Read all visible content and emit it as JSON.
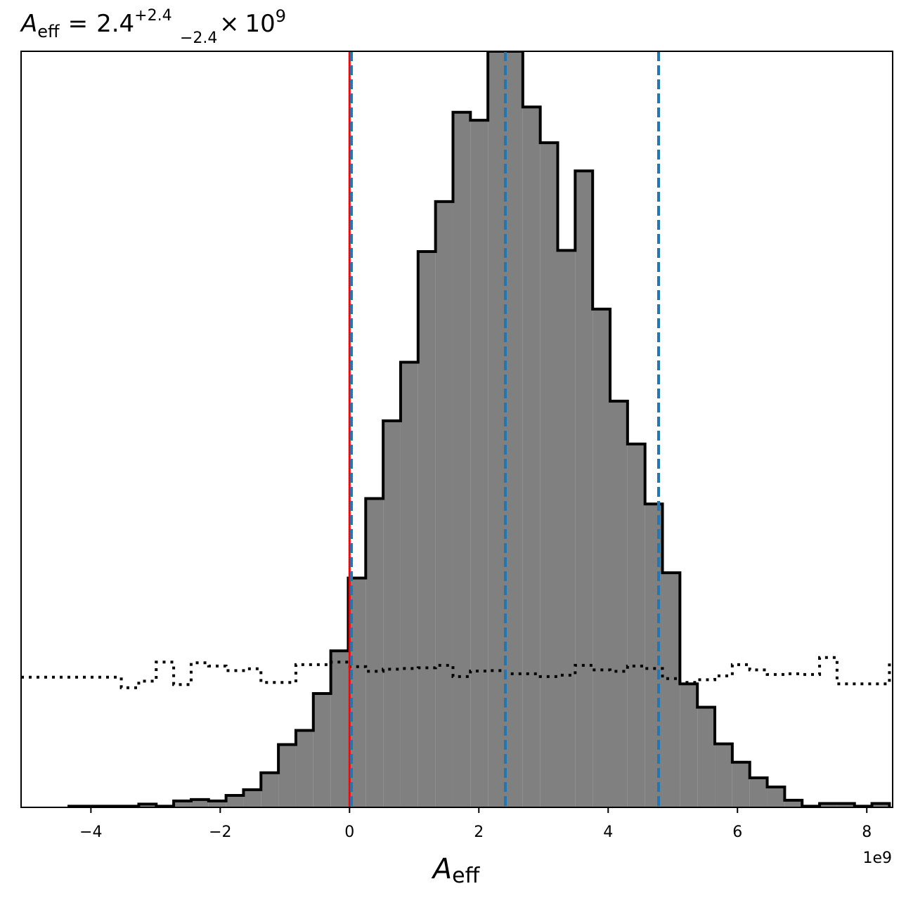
{
  "chart_data": {
    "type": "histogram",
    "title": {
      "symbol": "A",
      "symbol_subscript": "eff",
      "equals": "=",
      "median": "2.4",
      "err_plus": "+2.4",
      "err_minus": "−2.4",
      "times": "×",
      "exp_base": "10",
      "exp_power": "9"
    },
    "xlabel": {
      "symbol": "A",
      "subscript": "eff"
    },
    "ylabel": "",
    "x_scale_label": "1e9",
    "x_unit_multiplier": 1000000000.0,
    "xlim": [
      -5.08,
      8.4
    ],
    "ylim": [
      0,
      0.33
    ],
    "x_ticks": [
      {
        "value": -4,
        "label": "−4"
      },
      {
        "value": -2,
        "label": "−2"
      },
      {
        "value": 0,
        "label": "0"
      },
      {
        "value": 2,
        "label": "2"
      },
      {
        "value": 4,
        "label": "4"
      },
      {
        "value": 6,
        "label": "6"
      },
      {
        "value": 8,
        "label": "8"
      }
    ],
    "y_ticks_visible": false,
    "grid": false,
    "bin_width": 0.27,
    "posterior": {
      "color": "#808080",
      "edge_color": "#000000",
      "bins": [
        {
          "x0": -4.34,
          "x1": -4.07,
          "y": 0.0005
        },
        {
          "x0": -4.07,
          "x1": -3.8,
          "y": 0.0005
        },
        {
          "x0": -3.8,
          "x1": -3.53,
          "y": 0.0005
        },
        {
          "x0": -3.53,
          "x1": -3.26,
          "y": 0.0005
        },
        {
          "x0": -3.26,
          "x1": -2.99,
          "y": 0.0014
        },
        {
          "x0": -2.99,
          "x1": -2.72,
          "y": 0.0005
        },
        {
          "x0": -2.72,
          "x1": -2.45,
          "y": 0.0028
        },
        {
          "x0": -2.45,
          "x1": -2.18,
          "y": 0.0034
        },
        {
          "x0": -2.18,
          "x1": -1.91,
          "y": 0.0028
        },
        {
          "x0": -1.91,
          "x1": -1.64,
          "y": 0.0052
        },
        {
          "x0": -1.64,
          "x1": -1.37,
          "y": 0.0077
        },
        {
          "x0": -1.37,
          "x1": -1.1,
          "y": 0.0151
        },
        {
          "x0": -1.1,
          "x1": -0.83,
          "y": 0.0274
        },
        {
          "x0": -0.83,
          "x1": -0.56,
          "y": 0.0336
        },
        {
          "x0": -0.56,
          "x1": -0.29,
          "y": 0.0497
        },
        {
          "x0": -0.29,
          "x1": -0.02,
          "y": 0.0683
        },
        {
          "x0": -0.02,
          "x1": 0.25,
          "y": 0.1001
        },
        {
          "x0": 0.25,
          "x1": 0.52,
          "y": 0.1348
        },
        {
          "x0": 0.52,
          "x1": 0.79,
          "y": 0.1687
        },
        {
          "x0": 0.79,
          "x1": 1.06,
          "y": 0.1943
        },
        {
          "x0": 1.06,
          "x1": 1.33,
          "y": 0.2426
        },
        {
          "x0": 1.33,
          "x1": 1.6,
          "y": 0.2644
        },
        {
          "x0": 1.6,
          "x1": 1.87,
          "y": 0.3034
        },
        {
          "x0": 1.87,
          "x1": 2.14,
          "y": 0.2999
        },
        {
          "x0": 2.14,
          "x1": 2.41,
          "y": 0.33
        },
        {
          "x0": 2.41,
          "x1": 2.68,
          "y": 0.33
        },
        {
          "x0": 2.68,
          "x1": 2.95,
          "y": 0.3057
        },
        {
          "x0": 2.95,
          "x1": 3.22,
          "y": 0.2901
        },
        {
          "x0": 3.22,
          "x1": 3.49,
          "y": 0.2431
        },
        {
          "x0": 3.49,
          "x1": 3.76,
          "y": 0.2778
        },
        {
          "x0": 3.76,
          "x1": 4.03,
          "y": 0.2175
        },
        {
          "x0": 4.03,
          "x1": 4.3,
          "y": 0.1773
        },
        {
          "x0": 4.3,
          "x1": 4.57,
          "y": 0.1586
        },
        {
          "x0": 4.57,
          "x1": 4.84,
          "y": 0.1324
        },
        {
          "x0": 4.84,
          "x1": 5.11,
          "y": 0.1024
        },
        {
          "x0": 5.11,
          "x1": 5.38,
          "y": 0.0539
        },
        {
          "x0": 5.38,
          "x1": 5.65,
          "y": 0.0437
        },
        {
          "x0": 5.65,
          "x1": 5.92,
          "y": 0.0277
        },
        {
          "x0": 5.92,
          "x1": 6.19,
          "y": 0.0197
        },
        {
          "x0": 6.19,
          "x1": 6.46,
          "y": 0.0129
        },
        {
          "x0": 6.46,
          "x1": 6.73,
          "y": 0.0089
        },
        {
          "x0": 6.73,
          "x1": 7.0,
          "y": 0.0031
        },
        {
          "x0": 7.0,
          "x1": 7.27,
          "y": 0.0005
        },
        {
          "x0": 7.27,
          "x1": 7.54,
          "y": 0.0017
        },
        {
          "x0": 7.54,
          "x1": 7.81,
          "y": 0.0017
        },
        {
          "x0": 7.81,
          "x1": 8.08,
          "y": 0.0005
        },
        {
          "x0": 8.08,
          "x1": 8.35,
          "y": 0.0017
        }
      ]
    },
    "prior": {
      "line_style": "dotted",
      "color": "#000000",
      "steps": [
        {
          "x0": -5.08,
          "x1": -3.53,
          "y": 0.0568
        },
        {
          "x0": -3.53,
          "x1": -3.26,
          "y": 0.0522
        },
        {
          "x0": -3.26,
          "x1": -2.99,
          "y": 0.0551
        },
        {
          "x0": -2.99,
          "x1": -2.72,
          "y": 0.0634
        },
        {
          "x0": -2.72,
          "x1": -2.45,
          "y": 0.0536
        },
        {
          "x0": -2.45,
          "x1": -2.18,
          "y": 0.0631
        },
        {
          "x0": -2.18,
          "x1": -1.91,
          "y": 0.0617
        },
        {
          "x0": -1.91,
          "x1": -1.64,
          "y": 0.0597
        },
        {
          "x0": -1.64,
          "x1": -1.37,
          "y": 0.0605
        },
        {
          "x0": -1.37,
          "x1": -1.1,
          "y": 0.0545
        },
        {
          "x0": -1.1,
          "x1": -0.83,
          "y": 0.0545
        },
        {
          "x0": -0.83,
          "x1": -0.56,
          "y": 0.0623
        },
        {
          "x0": -0.56,
          "x1": -0.29,
          "y": 0.0623
        },
        {
          "x0": -0.29,
          "x1": -0.02,
          "y": 0.0634
        },
        {
          "x0": -0.02,
          "x1": 0.25,
          "y": 0.0614
        },
        {
          "x0": 0.25,
          "x1": 0.52,
          "y": 0.0594
        },
        {
          "x0": 0.52,
          "x1": 0.79,
          "y": 0.0603
        },
        {
          "x0": 0.79,
          "x1": 1.06,
          "y": 0.0606
        },
        {
          "x0": 1.06,
          "x1": 1.33,
          "y": 0.0609
        },
        {
          "x0": 1.33,
          "x1": 1.6,
          "y": 0.062
        },
        {
          "x0": 1.6,
          "x1": 1.87,
          "y": 0.0571
        },
        {
          "x0": 1.87,
          "x1": 2.14,
          "y": 0.0595
        },
        {
          "x0": 2.14,
          "x1": 2.41,
          "y": 0.0597
        },
        {
          "x0": 2.41,
          "x1": 2.68,
          "y": 0.0583
        },
        {
          "x0": 2.68,
          "x1": 2.95,
          "y": 0.0583
        },
        {
          "x0": 2.95,
          "x1": 3.22,
          "y": 0.0571
        },
        {
          "x0": 3.22,
          "x1": 3.49,
          "y": 0.0577
        },
        {
          "x0": 3.49,
          "x1": 3.76,
          "y": 0.062
        },
        {
          "x0": 3.76,
          "x1": 4.03,
          "y": 0.06
        },
        {
          "x0": 4.03,
          "x1": 4.3,
          "y": 0.0594
        },
        {
          "x0": 4.3,
          "x1": 4.57,
          "y": 0.0617
        },
        {
          "x0": 4.57,
          "x1": 4.84,
          "y": 0.0606
        },
        {
          "x0": 4.84,
          "x1": 5.11,
          "y": 0.0562
        },
        {
          "x0": 5.11,
          "x1": 5.38,
          "y": 0.0545
        },
        {
          "x0": 5.38,
          "x1": 5.65,
          "y": 0.0557
        },
        {
          "x0": 5.65,
          "x1": 5.92,
          "y": 0.0574
        },
        {
          "x0": 5.92,
          "x1": 6.19,
          "y": 0.0623
        },
        {
          "x0": 6.19,
          "x1": 6.46,
          "y": 0.06
        },
        {
          "x0": 6.46,
          "x1": 6.73,
          "y": 0.058
        },
        {
          "x0": 6.73,
          "x1": 7.0,
          "y": 0.0583
        },
        {
          "x0": 7.0,
          "x1": 7.27,
          "y": 0.058
        },
        {
          "x0": 7.27,
          "x1": 7.54,
          "y": 0.0654
        },
        {
          "x0": 7.54,
          "x1": 8.35,
          "y": 0.0539
        },
        {
          "x0": 8.35,
          "x1": 8.4,
          "y": 0.0634
        }
      ]
    },
    "vertical_lines": [
      {
        "name": "truth",
        "x": 0.0,
        "color": "#ff0000",
        "style": "solid"
      },
      {
        "name": "lower",
        "x": 0.03,
        "color": "#1f77b4",
        "style": "dashed"
      },
      {
        "name": "median",
        "x": 2.41,
        "color": "#1f77b4",
        "style": "dashed"
      },
      {
        "name": "upper",
        "x": 4.78,
        "color": "#1f77b4",
        "style": "dashed"
      }
    ]
  }
}
